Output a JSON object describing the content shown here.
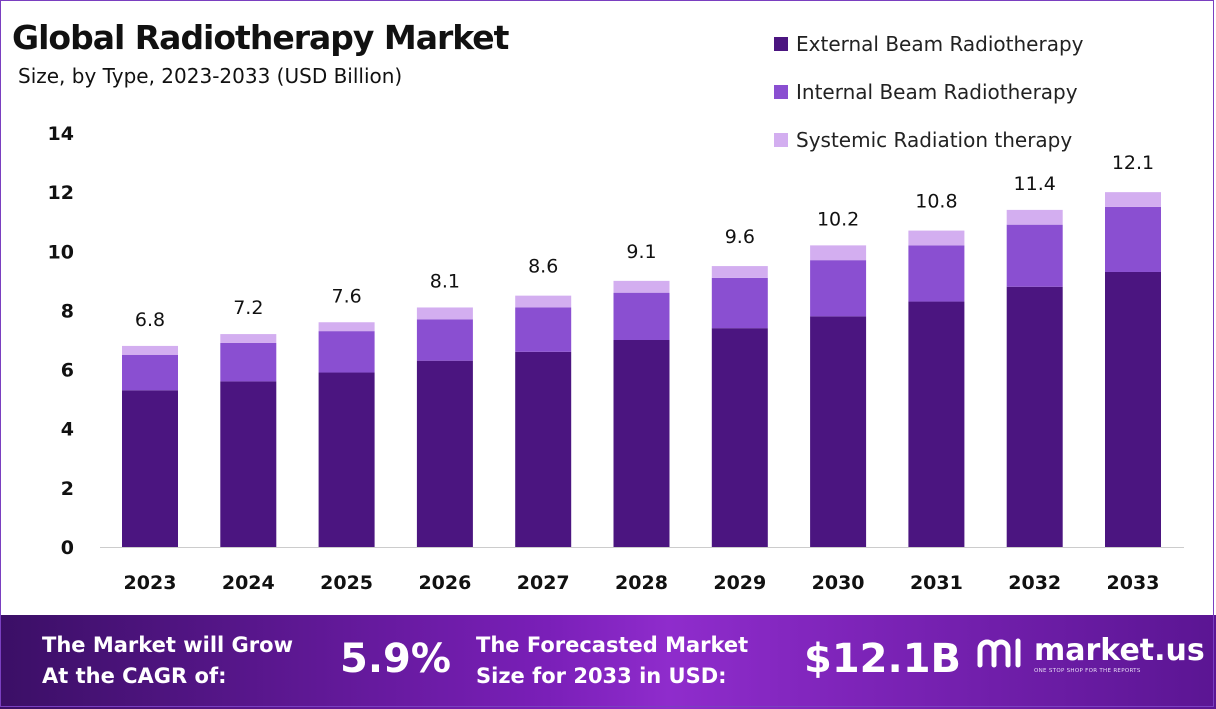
{
  "title": "Global Radiotherapy Market",
  "subtitle": "Size, by Type, 2023-2033 (USD Billion)",
  "colors": {
    "external": "#4b1580",
    "internal": "#8a4fd1",
    "systemic": "#d3aef0",
    "axis": "#cccccc"
  },
  "legend": [
    {
      "label": "External Beam Radiotherapy",
      "color": "#4b1580"
    },
    {
      "label": "Internal Beam Radiotherapy",
      "color": "#8a4fd1"
    },
    {
      "label": "Systemic Radiation therapy",
      "color": "#d3aef0"
    }
  ],
  "chart_data": {
    "type": "bar",
    "stacked": true,
    "categories": [
      "2023",
      "2024",
      "2025",
      "2026",
      "2027",
      "2028",
      "2029",
      "2030",
      "2031",
      "2032",
      "2033"
    ],
    "series": [
      {
        "name": "External Beam Radiotherapy",
        "values": [
          5.3,
          5.6,
          5.9,
          6.3,
          6.6,
          7.0,
          7.4,
          7.8,
          8.3,
          8.8,
          9.3
        ]
      },
      {
        "name": "Internal Beam Radiotherapy",
        "values": [
          1.2,
          1.3,
          1.4,
          1.4,
          1.5,
          1.6,
          1.7,
          1.9,
          1.9,
          2.1,
          2.2
        ]
      },
      {
        "name": "Systemic Radiation therapy",
        "values": [
          0.3,
          0.3,
          0.3,
          0.4,
          0.4,
          0.4,
          0.4,
          0.5,
          0.5,
          0.5,
          0.5
        ]
      }
    ],
    "totals": [
      "6.8",
      "7.2",
      "7.6",
      "8.1",
      "8.6",
      "9.1",
      "9.6",
      "10.2",
      "10.8",
      "11.4",
      "12.1"
    ],
    "yticks": [
      0,
      2,
      4,
      6,
      8,
      10,
      12,
      14
    ],
    "ylim": [
      0,
      14
    ],
    "grid": false,
    "legend_position": "top-right"
  },
  "footer": {
    "cagr_label": "The Market will Grow\nAt the CAGR of:",
    "cagr_value": "5.9%",
    "forecast_label": "The Forecasted Market\nSize for 2033 in USD:",
    "forecast_value": "$12.1B",
    "brand_name": "market.us",
    "brand_tagline": "ONE STOP SHOP FOR THE REPORTS",
    "logo_icon": "market-us-logo-icon"
  }
}
